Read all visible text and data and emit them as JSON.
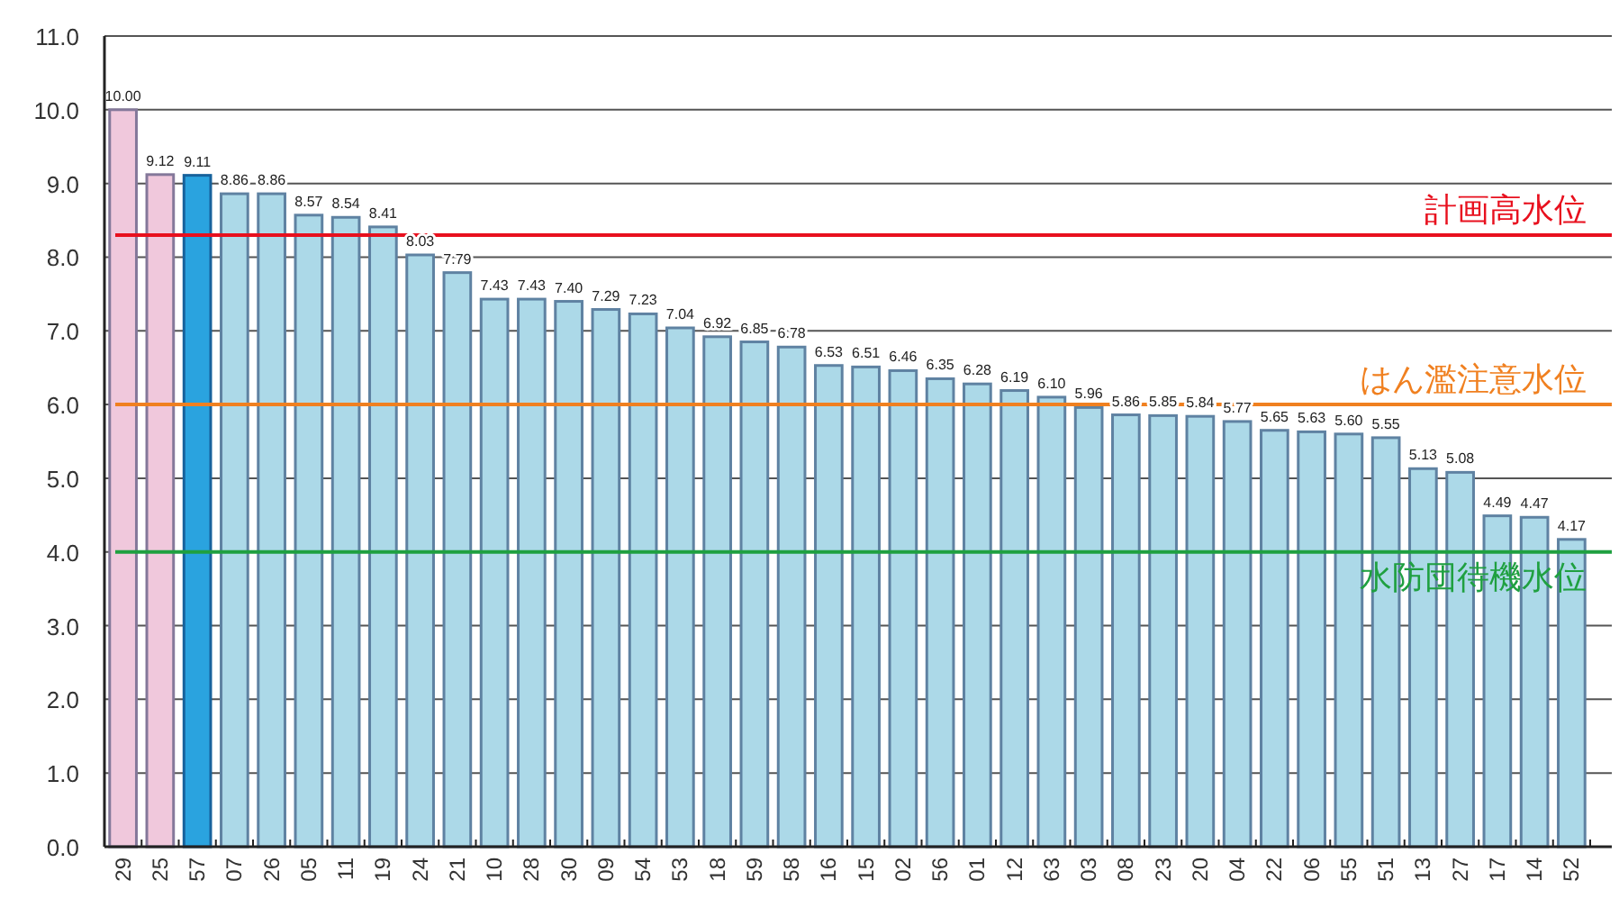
{
  "chart_data": {
    "type": "bar",
    "categories": [
      "29",
      "25",
      "57",
      "07",
      "26",
      "05",
      "11",
      "19",
      "24",
      "21",
      "10",
      "28",
      "30",
      "09",
      "54",
      "53",
      "18",
      "59",
      "58",
      "16",
      "15",
      "02",
      "56",
      "01",
      "12",
      "63",
      "03",
      "08",
      "23",
      "20",
      "04",
      "22",
      "06",
      "55",
      "51",
      "13",
      "27",
      "17",
      "14",
      "52"
    ],
    "values": [
      10.0,
      9.12,
      9.11,
      8.86,
      8.86,
      8.57,
      8.54,
      8.41,
      8.03,
      7.79,
      7.43,
      7.43,
      7.4,
      7.29,
      7.23,
      7.04,
      6.92,
      6.85,
      6.78,
      6.53,
      6.51,
      6.46,
      6.35,
      6.28,
      6.19,
      6.1,
      5.96,
      5.86,
      5.85,
      5.84,
      5.77,
      5.65,
      5.63,
      5.6,
      5.55,
      5.13,
      5.08,
      4.49,
      4.47,
      4.17
    ],
    "value_labels": [
      "10.00",
      "9.12",
      "9.11",
      "8.86",
      "8.86",
      "8.57",
      "8.54",
      "8.41",
      "8.03",
      "7.79",
      "7.43",
      "7.43",
      "7.40",
      "7.29",
      "7.23",
      "7.04",
      "6.92",
      "6.85",
      "6.78",
      "6.53",
      "6.51",
      "6.46",
      "6.35",
      "6.28",
      "6.19",
      "6.10",
      "5.96",
      "5.86",
      "5.85",
      "5.84",
      "5.77",
      "5.65",
      "5.63",
      "5.60",
      "5.55",
      "5.13",
      "5.08",
      "4.49",
      "4.47",
      "4.17"
    ],
    "colors": [
      "#f0c8dc",
      "#f0c8dc",
      "#2aa3df",
      "#acd9e8",
      "#acd9e8",
      "#acd9e8",
      "#acd9e8",
      "#acd9e8",
      "#acd9e8",
      "#acd9e8",
      "#acd9e8",
      "#acd9e8",
      "#acd9e8",
      "#acd9e8",
      "#acd9e8",
      "#acd9e8",
      "#acd9e8",
      "#acd9e8",
      "#acd9e8",
      "#acd9e8",
      "#acd9e8",
      "#acd9e8",
      "#acd9e8",
      "#acd9e8",
      "#acd9e8",
      "#acd9e8",
      "#acd9e8",
      "#acd9e8",
      "#acd9e8",
      "#acd9e8",
      "#acd9e8",
      "#acd9e8",
      "#acd9e8",
      "#acd9e8",
      "#acd9e8",
      "#acd9e8",
      "#acd9e8",
      "#acd9e8",
      "#acd9e8",
      "#acd9e8"
    ],
    "ylim": [
      0,
      11
    ],
    "yticks": [
      {
        "value": 0,
        "label": "0.0"
      },
      {
        "value": 1,
        "label": "1.0"
      },
      {
        "value": 2,
        "label": "2.0"
      },
      {
        "value": 3,
        "label": "3.0"
      },
      {
        "value": 4,
        "label": "4.0"
      },
      {
        "value": 5,
        "label": "5.0"
      },
      {
        "value": 6,
        "label": "6.0"
      },
      {
        "value": 7,
        "label": "7.0"
      },
      {
        "value": 8,
        "label": "8.0"
      },
      {
        "value": 9,
        "label": "9.0"
      },
      {
        "value": 10,
        "label": "10.0"
      },
      {
        "value": 11,
        "label": "11.0"
      }
    ],
    "grid": "y",
    "ref_lines": [
      {
        "axis": "y",
        "value": 8.3,
        "label": "計画高水位",
        "color": "#e8101e"
      },
      {
        "axis": "y",
        "value": 6.0,
        "label": "はん濫注意水位",
        "color": "#f08020"
      },
      {
        "axis": "y",
        "value": 4.0,
        "label": "水防団待機水位",
        "color": "#1fa040"
      }
    ]
  }
}
